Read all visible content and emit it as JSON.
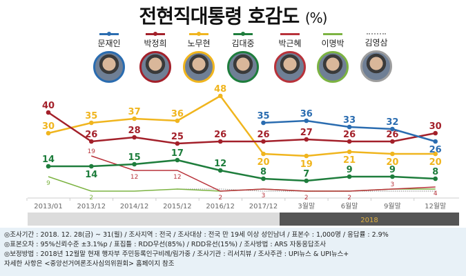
{
  "title": "전현직대통령 호감도",
  "unit": "(%)",
  "chart_data": {
    "type": "line",
    "categories": [
      "2013/01",
      "2013/12",
      "2014/12",
      "2015/12",
      "2016/12",
      "2017/12",
      "3월말",
      "6월말",
      "9월말",
      "12월말"
    ],
    "year_band": "2018",
    "ylim": [
      0,
      50
    ],
    "series": [
      {
        "name": "문재인",
        "color": "#2a6cb0",
        "width": 2.5,
        "dots": true,
        "values": [
          null,
          null,
          null,
          null,
          null,
          35,
          36,
          33,
          32,
          26
        ],
        "labeled": [
          5,
          6,
          7,
          8,
          9
        ],
        "label_pos": [
          "a",
          "a",
          "a",
          "a",
          "a",
          "a",
          "a",
          "a",
          "a",
          "b"
        ]
      },
      {
        "name": "박정희",
        "color": "#a3202a",
        "width": 2.5,
        "dots": true,
        "values": [
          40,
          26,
          28,
          25,
          26,
          26,
          27,
          26,
          26,
          30
        ],
        "labeled": [
          0,
          1,
          2,
          3,
          4,
          5,
          6,
          7,
          8,
          9
        ],
        "label_pos": [
          "a",
          "a",
          "a",
          "a",
          "a",
          "a",
          "a",
          "a",
          "a",
          "a"
        ]
      },
      {
        "name": "노무현",
        "color": "#f0b51e",
        "width": 2.5,
        "dots": true,
        "values": [
          30,
          35,
          37,
          36,
          48,
          20,
          19,
          21,
          20,
          20
        ],
        "labeled": [
          0,
          1,
          2,
          3,
          4,
          5,
          6,
          7,
          8,
          9
        ],
        "label_pos": [
          "a",
          "a",
          "a",
          "a",
          "a",
          "b",
          "b",
          "b",
          "b",
          "b"
        ]
      },
      {
        "name": "김대중",
        "color": "#1e7d3c",
        "width": 2.5,
        "dots": true,
        "values": [
          14,
          14,
          15,
          17,
          12,
          8,
          7,
          9,
          9,
          8
        ],
        "labeled": [
          0,
          1,
          2,
          3,
          4,
          5,
          6,
          7,
          8,
          9
        ],
        "label_pos": [
          "a",
          "b",
          "a",
          "a",
          "a",
          "a",
          "a",
          "a",
          "a",
          "a"
        ]
      },
      {
        "name": "박근혜",
        "color": "#b8323a",
        "width": 1.5,
        "dots": false,
        "values": [
          null,
          19,
          12,
          12,
          2,
          3,
          2,
          2,
          3,
          4
        ],
        "labeled": [
          1,
          2,
          3,
          4,
          5,
          6,
          7,
          8,
          9
        ],
        "label_pos": [
          "a",
          "a",
          "b",
          "b",
          "b",
          "b",
          "b",
          "b",
          "a",
          "b"
        ]
      },
      {
        "name": "이명박",
        "color": "#7cb342",
        "width": 1.5,
        "dots": false,
        "values": [
          9,
          2,
          2,
          3,
          2,
          3,
          2,
          2,
          3,
          3
        ],
        "labeled": [
          0,
          1
        ],
        "label_pos": [
          "b",
          "b",
          "b",
          "b",
          "b",
          "b",
          "b",
          "b",
          "b",
          "b"
        ]
      },
      {
        "name": "김영삼",
        "color": "#9e9e9e",
        "width": 1.2,
        "dots": false,
        "dashed": true,
        "values": [
          null,
          null,
          null,
          3,
          3,
          2,
          2,
          2,
          2,
          2
        ],
        "labeled": [],
        "label_pos": []
      }
    ]
  },
  "footer": {
    "lines": [
      "◎조사기간 : 2018. 12. 28(금) ~ 31(월) / 조사지역 : 전국 / 조사대상 : 전국 만 19세 이상 성인남녀 / 표본수 : 1,000명 / 응답률 : 2.9%",
      "◎표본오차 : 95%신뢰수준 ±3.1%p  / 표집틀 : RDD무선(85%) / RDD유선(15%) / 조사방법 : ARS 자동응답조사",
      "◎보정방법 : 2018년 12월말 현재 행자부 주민등록인구비례/림가중 / 조사기관 : 리서치뷰 / 조사주관 : UPI뉴스 & UPI뉴스+",
      "자세한 사항은 <중앙선거여론조사심의위원회> 홈페이지 참조"
    ]
  }
}
